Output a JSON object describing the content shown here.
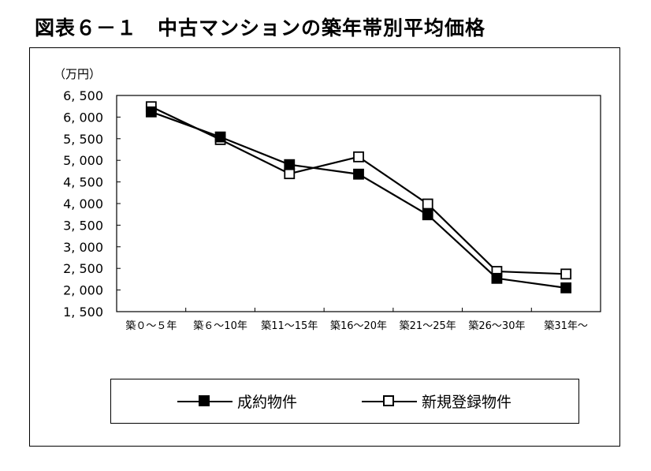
{
  "chart_data": {
    "type": "line",
    "title": "図表６－１　中古マンションの築年帯別平均価格",
    "ylabel": "（万円）",
    "xlabel": "",
    "categories": [
      "築０～５年",
      "築６～10年",
      "築11～15年",
      "築16～20年",
      "築21～25年",
      "築26～30年",
      "築31年～"
    ],
    "ylim": [
      1500,
      6500
    ],
    "yticks": [
      1500,
      2000,
      2500,
      3000,
      3500,
      4000,
      4500,
      5000,
      5500,
      6000,
      6500
    ],
    "ytick_labels": [
      "1, 500",
      "2, 000",
      "2, 500",
      "3, 000",
      "3, 500",
      "4, 000",
      "4, 500",
      "5, 000",
      "5, 500",
      "6, 000",
      "6, 500"
    ],
    "grid": false,
    "legend_position": "bottom",
    "series": [
      {
        "name": "成約物件",
        "marker": "filled-square",
        "color": "#000000",
        "values": [
          6120,
          5540,
          4900,
          4680,
          3740,
          2270,
          2050
        ]
      },
      {
        "name": "新規登録物件",
        "marker": "open-square",
        "color": "#000000",
        "values": [
          6240,
          5480,
          4690,
          5080,
          3990,
          2430,
          2370
        ]
      }
    ]
  }
}
